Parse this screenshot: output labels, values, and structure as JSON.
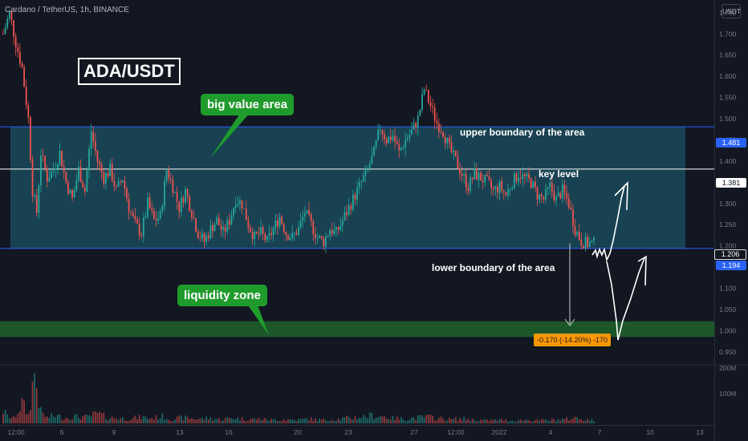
{
  "header": {
    "symbol_line": "Cardano / TetherUS, 1h, BINANCE",
    "currency_badge": "USDT"
  },
  "annotations": {
    "pair_label": "ADA/USDT",
    "big_value_area": "big value area",
    "liquidity_zone": "liquidity zone",
    "upper_boundary": "upper boundary of the area",
    "key_level": "key level",
    "lower_boundary": "lower boundary of the area",
    "measurement": "-0.170 (-14.20%) -170"
  },
  "price_tags": {
    "upper": "1.481",
    "key": "1.381",
    "current": "1.206",
    "lower": "1.194"
  },
  "colors": {
    "background": "#131722",
    "up_candle": "#26a69a",
    "down_candle": "#ef5350",
    "area_fill": "#1a4a5a",
    "level_line": "#2962ff",
    "liquidity_fill": "#1e5e2a",
    "label_green": "#1f9b2c",
    "measure_orange": "#ff9800"
  },
  "chart_data": {
    "type": "candlestick",
    "y_axis_ticks": [
      "1.750",
      "1.700",
      "1.650",
      "1.600",
      "1.550",
      "1.500",
      "1.450",
      "1.400",
      "1.350",
      "1.300",
      "1.250",
      "1.200",
      "1.150",
      "1.100",
      "1.050",
      "1.000",
      "0.950"
    ],
    "volume_ticks": [
      "200M",
      "100M"
    ],
    "x_axis_ticks": [
      "12:00",
      "6",
      "9",
      "13",
      "16",
      "20",
      "23",
      "27",
      "12:00",
      "2022",
      "4",
      "7",
      "10",
      "13"
    ],
    "ylim": [
      0.925,
      1.78
    ],
    "levels": {
      "upper": 1.481,
      "key": 1.381,
      "lower": 1.194,
      "current": 1.206
    },
    "liquidity_zone": [
      0.985,
      1.022
    ],
    "price_path": [
      [
        0,
        1.7
      ],
      [
        3,
        1.75
      ],
      [
        6,
        1.68
      ],
      [
        9,
        1.62
      ],
      [
        12,
        1.5
      ],
      [
        14,
        1.33
      ],
      [
        16,
        1.28
      ],
      [
        18,
        1.42
      ],
      [
        21,
        1.36
      ],
      [
        24,
        1.38
      ],
      [
        27,
        1.42
      ],
      [
        30,
        1.35
      ],
      [
        33,
        1.31
      ],
      [
        36,
        1.38
      ],
      [
        39,
        1.33
      ],
      [
        42,
        1.47
      ],
      [
        45,
        1.4
      ],
      [
        48,
        1.36
      ],
      [
        51,
        1.38
      ],
      [
        54,
        1.33
      ],
      [
        57,
        1.36
      ],
      [
        60,
        1.29
      ],
      [
        63,
        1.25
      ],
      [
        66,
        1.23
      ],
      [
        69,
        1.3
      ],
      [
        72,
        1.26
      ],
      [
        75,
        1.27
      ],
      [
        78,
        1.38
      ],
      [
        81,
        1.34
      ],
      [
        84,
        1.29
      ],
      [
        87,
        1.33
      ],
      [
        90,
        1.28
      ],
      [
        93,
        1.23
      ],
      [
        96,
        1.21
      ],
      [
        99,
        1.24
      ],
      [
        102,
        1.26
      ],
      [
        105,
        1.23
      ],
      [
        108,
        1.26
      ],
      [
        111,
        1.31
      ],
      [
        114,
        1.3
      ],
      [
        117,
        1.25
      ],
      [
        120,
        1.22
      ],
      [
        123,
        1.23
      ],
      [
        126,
        1.21
      ],
      [
        129,
        1.24
      ],
      [
        132,
        1.27
      ],
      [
        135,
        1.23
      ],
      [
        138,
        1.22
      ],
      [
        141,
        1.24
      ],
      [
        144,
        1.28
      ],
      [
        147,
        1.25
      ],
      [
        150,
        1.22
      ],
      [
        153,
        1.21
      ],
      [
        156,
        1.24
      ],
      [
        159,
        1.23
      ],
      [
        162,
        1.26
      ],
      [
        165,
        1.29
      ],
      [
        168,
        1.32
      ],
      [
        171,
        1.35
      ],
      [
        174,
        1.38
      ],
      [
        177,
        1.42
      ],
      [
        180,
        1.48
      ],
      [
        183,
        1.45
      ],
      [
        186,
        1.46
      ],
      [
        189,
        1.42
      ],
      [
        192,
        1.45
      ],
      [
        195,
        1.47
      ],
      [
        198,
        1.5
      ],
      [
        201,
        1.57
      ],
      [
        204,
        1.53
      ],
      [
        207,
        1.49
      ],
      [
        210,
        1.47
      ],
      [
        213,
        1.43
      ],
      [
        216,
        1.4
      ],
      [
        219,
        1.37
      ],
      [
        222,
        1.34
      ],
      [
        225,
        1.37
      ],
      [
        228,
        1.36
      ],
      [
        231,
        1.35
      ],
      [
        234,
        1.33
      ],
      [
        237,
        1.34
      ],
      [
        240,
        1.32
      ],
      [
        243,
        1.35
      ],
      [
        246,
        1.37
      ],
      [
        249,
        1.36
      ],
      [
        252,
        1.35
      ],
      [
        255,
        1.32
      ],
      [
        258,
        1.31
      ],
      [
        261,
        1.34
      ],
      [
        264,
        1.31
      ],
      [
        267,
        1.33
      ],
      [
        270,
        1.3
      ],
      [
        273,
        1.24
      ],
      [
        276,
        1.21
      ],
      [
        279,
        1.205
      ],
      [
        282,
        1.206
      ]
    ],
    "volume_path": [
      [
        0,
        45
      ],
      [
        2,
        25
      ],
      [
        5,
        18
      ],
      [
        9,
        70
      ],
      [
        12,
        30
      ],
      [
        15,
        180
      ],
      [
        18,
        40
      ],
      [
        21,
        20
      ],
      [
        25,
        28
      ],
      [
        29,
        20
      ],
      [
        34,
        24
      ],
      [
        40,
        22
      ],
      [
        45,
        35
      ],
      [
        50,
        20
      ],
      [
        56,
        18
      ],
      [
        60,
        16
      ],
      [
        66,
        22
      ],
      [
        70,
        18
      ],
      [
        76,
        24
      ],
      [
        80,
        15
      ],
      [
        86,
        20
      ],
      [
        92,
        16
      ],
      [
        98,
        18
      ],
      [
        104,
        14
      ],
      [
        110,
        20
      ],
      [
        116,
        14
      ],
      [
        122,
        16
      ],
      [
        128,
        12
      ],
      [
        134,
        14
      ],
      [
        140,
        12
      ],
      [
        146,
        16
      ],
      [
        152,
        12
      ],
      [
        158,
        14
      ],
      [
        164,
        18
      ],
      [
        170,
        22
      ],
      [
        176,
        28
      ],
      [
        180,
        26
      ],
      [
        186,
        18
      ],
      [
        192,
        16
      ],
      [
        198,
        20
      ],
      [
        202,
        24
      ],
      [
        208,
        18
      ],
      [
        214,
        14
      ],
      [
        220,
        16
      ],
      [
        226,
        12
      ],
      [
        232,
        10
      ],
      [
        238,
        12
      ],
      [
        244,
        10
      ],
      [
        250,
        12
      ],
      [
        256,
        10
      ],
      [
        262,
        12
      ],
      [
        268,
        14
      ],
      [
        274,
        20
      ],
      [
        278,
        14
      ],
      [
        282,
        10
      ]
    ]
  }
}
